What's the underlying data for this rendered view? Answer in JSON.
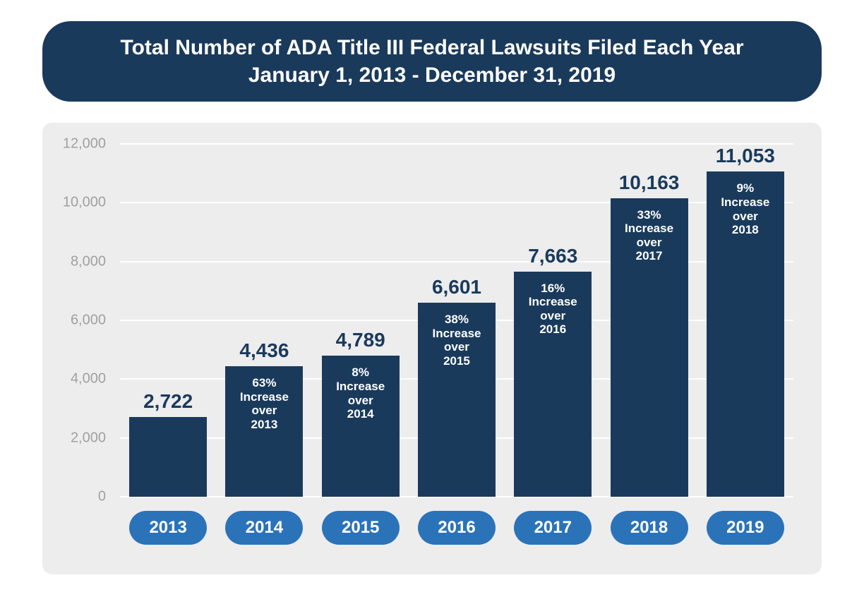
{
  "title": {
    "line1": "Total Number of ADA Title III Federal Lawsuits Filed Each Year",
    "line2": "January 1, 2013 - December 31, 2019"
  },
  "chart": {
    "type": "bar",
    "background_color": "#ededed",
    "grid_color": "#ffffff",
    "bar_color": "#1a3a5c",
    "pill_color": "#2b73b8",
    "value_label_color": "#1a3a5c",
    "axis_label_color": "#a0a0a0",
    "title_fontsize": 30,
    "value_fontsize": 28,
    "pill_fontsize": 24,
    "ylim": [
      0,
      12000
    ],
    "ytick_step": 2000,
    "yticks": [
      {
        "v": 0,
        "label": "0"
      },
      {
        "v": 2000,
        "label": "2,000"
      },
      {
        "v": 4000,
        "label": "4,000"
      },
      {
        "v": 6000,
        "label": "6,000"
      },
      {
        "v": 8000,
        "label": "8,000"
      },
      {
        "v": 10000,
        "label": "10,000"
      },
      {
        "v": 12000,
        "label": "12,000"
      }
    ],
    "bars": [
      {
        "year": "2013",
        "value": 2722,
        "value_label": "2,722",
        "note": ""
      },
      {
        "year": "2014",
        "value": 4436,
        "value_label": "4,436",
        "note": "63% Increase over 2013"
      },
      {
        "year": "2015",
        "value": 4789,
        "value_label": "4,789",
        "note": "8% Increase over 2014"
      },
      {
        "year": "2016",
        "value": 6601,
        "value_label": "6,601",
        "note": "38% Increase over 2015"
      },
      {
        "year": "2017",
        "value": 7663,
        "value_label": "7,663",
        "note": "16% Increase over 2016"
      },
      {
        "year": "2018",
        "value": 10163,
        "value_label": "10,163",
        "note": "33% Increase over 2017"
      },
      {
        "year": "2019",
        "value": 11053,
        "value_label": "11,053",
        "note": "9% Increase over 2018"
      }
    ]
  }
}
